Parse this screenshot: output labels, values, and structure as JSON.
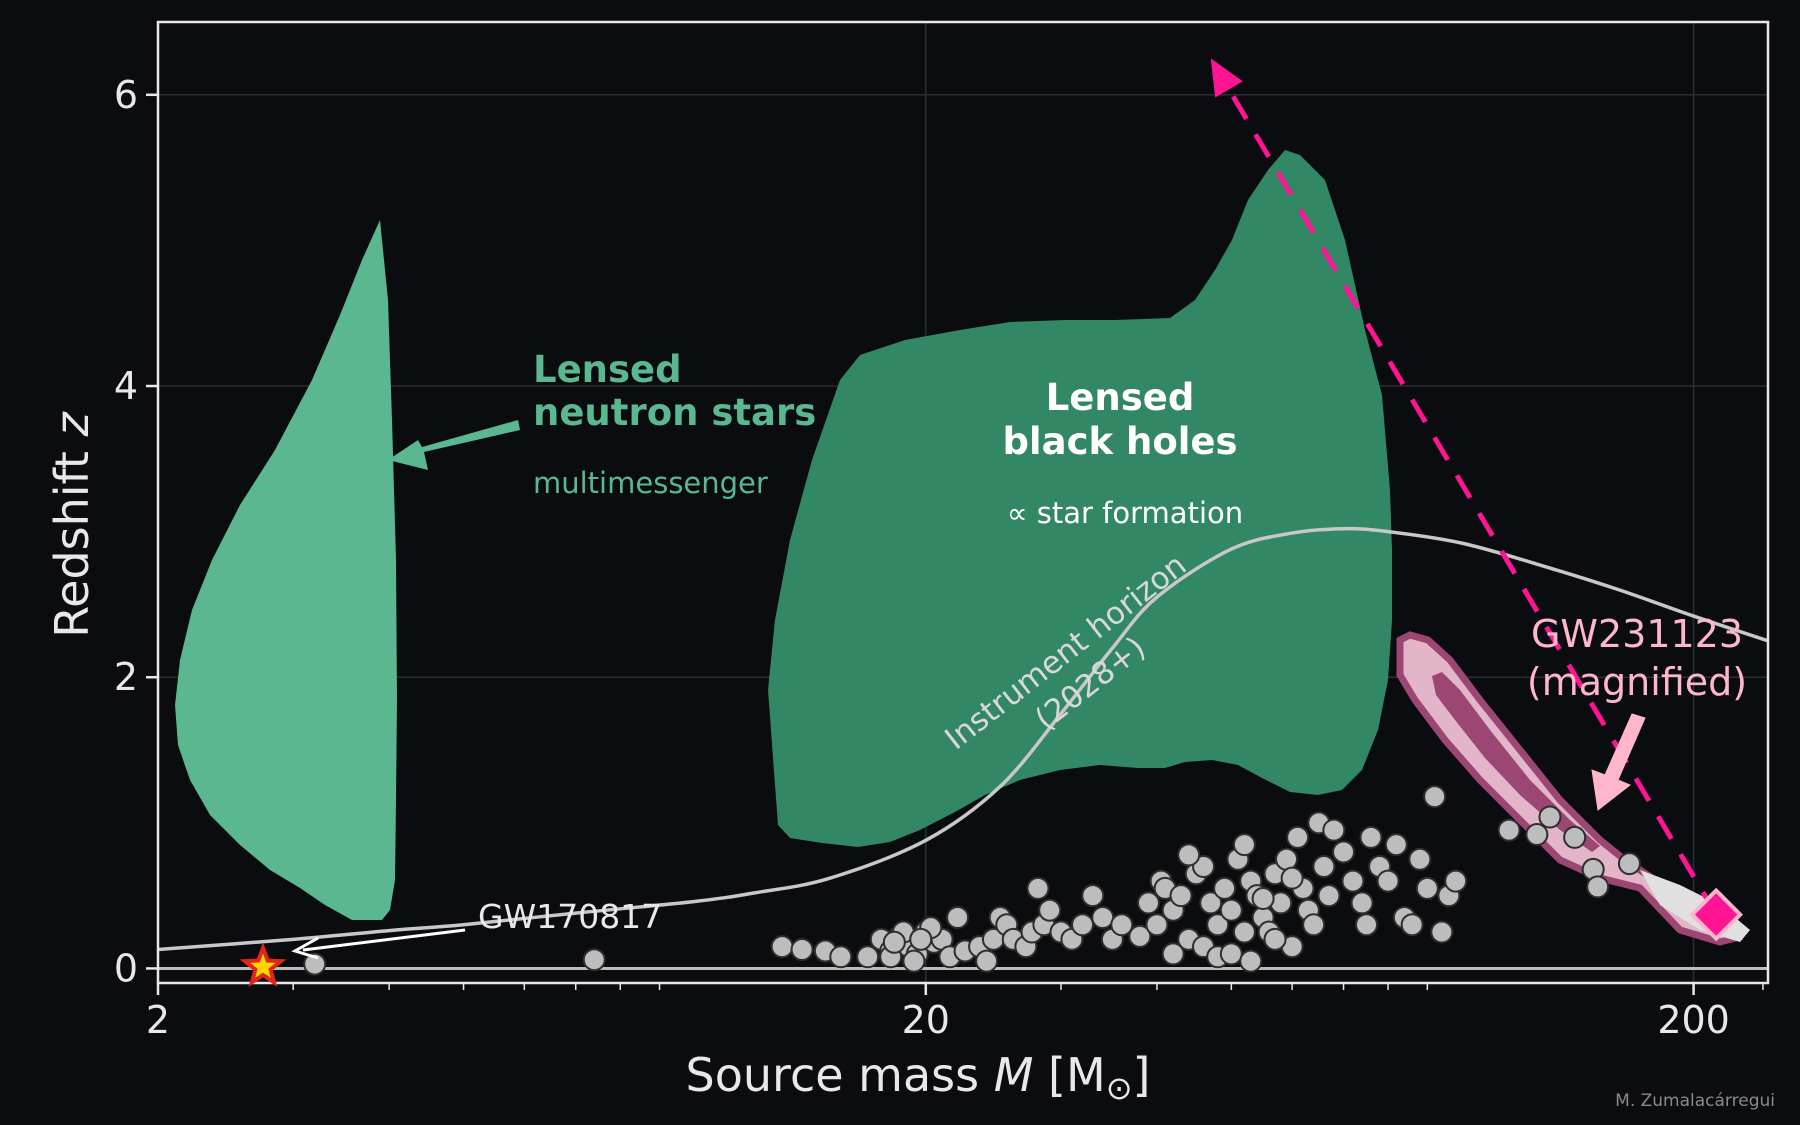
{
  "chart_data": {
    "type": "scatter",
    "xlabel_prefix": "Source mass ",
    "xlabel_var": "M",
    "xlabel_unit": "[M",
    "xlabel_unit_sub": "⊙",
    "xlabel_unit_close": "]",
    "ylabel_prefix": "Redshift ",
    "ylabel_var": "z",
    "x_scale": "log",
    "xlim": [
      2,
      250
    ],
    "ylim": [
      -0.1,
      6.5
    ],
    "x_ticks": [
      {
        "value": 2,
        "label": "2"
      },
      {
        "value": 20,
        "label": "20"
      },
      {
        "value": 200,
        "label": "200"
      }
    ],
    "y_ticks": [
      {
        "value": 0,
        "label": "0"
      },
      {
        "value": 2,
        "label": "2"
      },
      {
        "value": 4,
        "label": "4"
      },
      {
        "value": 6,
        "label": "6"
      }
    ],
    "grid": true,
    "colors": {
      "background": "#0a0c10",
      "ns_region": "#5bb78f",
      "bh_region": "#328765",
      "horizon": "#c8c8c8",
      "events": "#bdbdbd",
      "highlight": "#ff1493",
      "contour_light": "#e3b5c8",
      "contour_dark": "#9c4673",
      "star_fill": "#ffd700",
      "star_edge": "#e0261c"
    },
    "annotations": {
      "ns_title_1": "Lensed",
      "ns_title_2": "neutron stars",
      "ns_sub": "multimessenger",
      "bh_title_1": "Lensed",
      "bh_title_2": "black holes",
      "bh_sub": "∝ star formation",
      "horizon_1": "Instrument horizon",
      "horizon_2": "(2028+)",
      "gw170817": "GW170817",
      "gw231123_1": "GW231123",
      "gw231123_2": "(magnified)",
      "credit": "M. Zumalacárregui"
    },
    "horizon_curve": [
      [
        2,
        0.13
      ],
      [
        3,
        0.2
      ],
      [
        4,
        0.26
      ],
      [
        5,
        0.3
      ],
      [
        7,
        0.38
      ],
      [
        10,
        0.46
      ],
      [
        12,
        0.52
      ],
      [
        15,
        0.62
      ],
      [
        20,
        0.88
      ],
      [
        25,
        1.25
      ],
      [
        30,
        1.75
      ],
      [
        35,
        2.2
      ],
      [
        40,
        2.55
      ],
      [
        50,
        2.88
      ],
      [
        60,
        2.99
      ],
      [
        70,
        3.02
      ],
      [
        80,
        3.0
      ],
      [
        100,
        2.92
      ],
      [
        130,
        2.75
      ],
      [
        160,
        2.6
      ],
      [
        200,
        2.42
      ],
      [
        250,
        2.25
      ]
    ],
    "gw170817": {
      "x": 2.74,
      "z": 0.01
    },
    "gw231123": {
      "x": 214,
      "z": 0.37
    },
    "magnification_arrow": {
      "from": [
        214,
        0.37
      ],
      "to": [
        47,
        6.25
      ]
    },
    "events": [
      [
        3.2,
        0.03
      ],
      [
        7.4,
        0.06
      ],
      [
        13,
        0.15
      ],
      [
        13.8,
        0.13
      ],
      [
        14.8,
        0.12
      ],
      [
        15.5,
        0.08
      ],
      [
        16.8,
        0.08
      ],
      [
        17.5,
        0.2
      ],
      [
        18,
        0.12
      ],
      [
        18.5,
        0.22
      ],
      [
        19,
        0.15
      ],
      [
        19.5,
        0.1
      ],
      [
        20,
        0.25
      ],
      [
        20.5,
        0.18
      ],
      [
        21,
        0.2
      ],
      [
        21.5,
        0.08
      ],
      [
        22,
        0.35
      ],
      [
        22.5,
        0.12
      ],
      [
        18,
        0.08
      ],
      [
        18.7,
        0.25
      ],
      [
        19.3,
        0.05
      ],
      [
        20.3,
        0.28
      ],
      [
        19.7,
        0.2
      ],
      [
        18.2,
        0.18
      ],
      [
        23.5,
        0.15
      ],
      [
        24,
        0.05
      ],
      [
        24.5,
        0.2
      ],
      [
        25,
        0.35
      ],
      [
        25.5,
        0.3
      ],
      [
        26,
        0.2
      ],
      [
        27,
        0.15
      ],
      [
        27.5,
        0.25
      ],
      [
        28,
        0.55
      ],
      [
        28.5,
        0.3
      ],
      [
        29,
        0.4
      ],
      [
        30,
        0.25
      ],
      [
        31,
        0.2
      ],
      [
        32,
        0.3
      ],
      [
        33,
        0.5
      ],
      [
        34,
        0.35
      ],
      [
        35,
        0.2
      ],
      [
        36,
        0.3
      ],
      [
        38,
        0.22
      ],
      [
        39,
        0.45
      ],
      [
        40,
        0.3
      ],
      [
        40.5,
        0.6
      ],
      [
        41,
        0.55
      ],
      [
        42,
        0.4
      ],
      [
        43,
        0.5
      ],
      [
        44,
        0.2
      ],
      [
        45,
        0.65
      ],
      [
        46,
        0.7
      ],
      [
        47,
        0.45
      ],
      [
        48,
        0.3
      ],
      [
        49,
        0.55
      ],
      [
        50,
        0.4
      ],
      [
        51,
        0.75
      ],
      [
        52,
        0.85
      ],
      [
        53,
        0.6
      ],
      [
        54,
        0.5
      ],
      [
        55,
        0.35
      ],
      [
        56,
        0.25
      ],
      [
        57,
        0.65
      ],
      [
        58,
        0.45
      ],
      [
        59,
        0.75
      ],
      [
        60,
        0.15
      ],
      [
        61,
        0.9
      ],
      [
        62,
        0.55
      ],
      [
        63,
        0.4
      ],
      [
        64,
        0.3
      ],
      [
        65,
        1.0
      ],
      [
        66,
        0.7
      ],
      [
        67,
        0.5
      ],
      [
        68,
        0.95
      ],
      [
        70,
        0.8
      ],
      [
        72,
        0.6
      ],
      [
        74,
        0.45
      ],
      [
        75,
        0.3
      ],
      [
        76,
        0.9
      ],
      [
        78,
        0.7
      ],
      [
        80,
        0.6
      ],
      [
        82,
        0.85
      ],
      [
        84,
        0.35
      ],
      [
        86,
        0.3
      ],
      [
        88,
        0.75
      ],
      [
        90,
        0.55
      ],
      [
        92,
        1.18
      ],
      [
        94,
        0.25
      ],
      [
        96,
        0.5
      ],
      [
        98,
        0.6
      ],
      [
        42,
        0.1
      ],
      [
        44,
        0.78
      ],
      [
        46,
        0.15
      ],
      [
        48,
        0.08
      ],
      [
        50,
        0.1
      ],
      [
        52,
        0.25
      ],
      [
        53,
        0.05
      ],
      [
        55,
        0.48
      ],
      [
        57,
        0.2
      ],
      [
        60,
        0.62
      ],
      [
        115,
        0.95
      ],
      [
        125,
        0.92
      ],
      [
        130,
        1.04
      ],
      [
        140,
        0.9
      ],
      [
        148,
        0.68
      ],
      [
        150,
        0.56
      ],
      [
        165,
        0.72
      ]
    ]
  }
}
